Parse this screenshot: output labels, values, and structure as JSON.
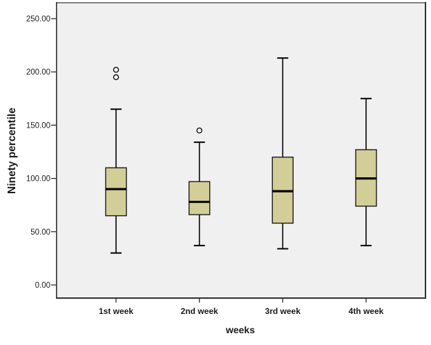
{
  "chart_data": {
    "type": "boxplot",
    "title": "",
    "xlabel": "weeks",
    "ylabel": "Ninety percentile",
    "categories": [
      "1st week",
      "2nd week",
      "3rd week",
      "4th week"
    ],
    "y_ticks": [
      0,
      50,
      100,
      150,
      200,
      250
    ],
    "y_tick_labels": [
      "0.00",
      "50.00",
      "100.00",
      "150.00",
      "200.00",
      "250.00"
    ],
    "ylim": [
      0,
      250
    ],
    "grid": false,
    "legend": null,
    "series": [
      {
        "category": "1st week",
        "whisker_low": 30,
        "q1": 65,
        "median": 90,
        "q3": 110,
        "whisker_high": 165,
        "outliers": [
          195,
          202
        ]
      },
      {
        "category": "2nd week",
        "whisker_low": 37,
        "q1": 66,
        "median": 78,
        "q3": 97,
        "whisker_high": 134,
        "outliers": [
          145
        ]
      },
      {
        "category": "3rd week",
        "whisker_low": 34,
        "q1": 58,
        "median": 88,
        "q3": 120,
        "whisker_high": 213,
        "outliers": []
      },
      {
        "category": "4th week",
        "whisker_low": 37,
        "q1": 74,
        "median": 100,
        "q3": 127,
        "whisker_high": 175,
        "outliers": []
      }
    ],
    "colors": {
      "box_fill": "#D3CE97",
      "box_stroke": "#1a1a1a",
      "median": "#000000",
      "plot_bg": "#F0F0F0",
      "frame_top": "#808080",
      "frame_dark": "#2e2e2e",
      "text": "#1a1a1a"
    }
  }
}
